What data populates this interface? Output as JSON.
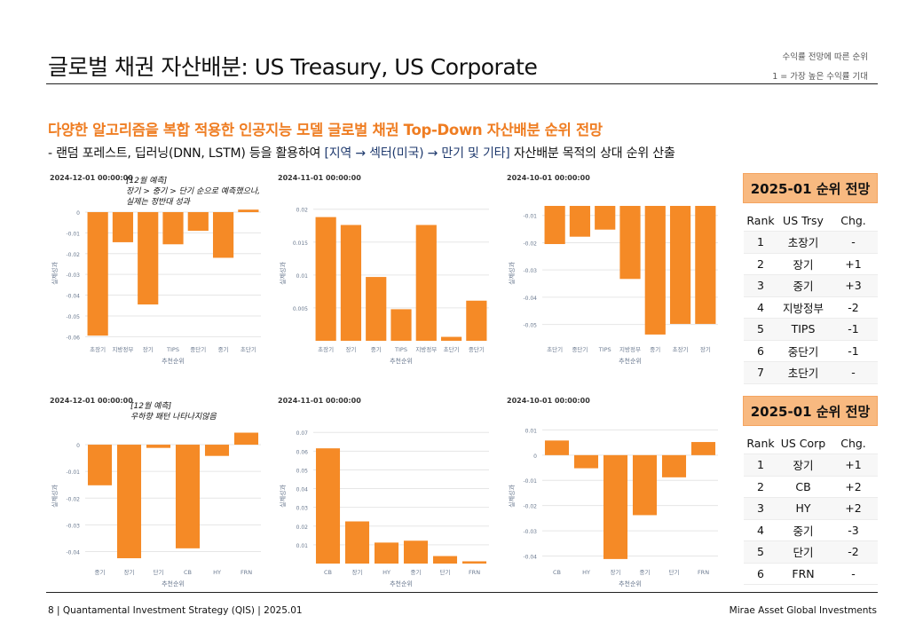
{
  "page": {
    "title": "글로벌 채권 자산배분: US Treasury, US Corporate",
    "note_line1": "수익률 전망에 따른 순위",
    "note_line2": "1 = 가장 높은 수익률 기대",
    "headline": "다양한 알고리즘을 복합 적용한 인공지능 모델 글로벌 채권 Top-Down 자산배분 순위 전망",
    "subline_prefix": "-  랜덤 포레스트, 딥러닝(DNN, LSTM) 등을 활용하여 ",
    "subline_highlight": "[지역 → 섹터(미국) → 만기 및 기타]",
    "subline_suffix": " 자산배분 목적의 상대 순위 산출"
  },
  "annotations": {
    "trsy": [
      "[12월 예측]",
      "장기 > 중기 > 단기 순으로 예측했으나,",
      "실제는 정반대 성과"
    ],
    "corp": [
      "[12월 예측]",
      "우하향 패턴 나타나지않음"
    ]
  },
  "chart_data": [
    {
      "type": "bar",
      "title": "2024-12-01 00:00:00",
      "categories": [
        "초장기",
        "지방정부",
        "장기",
        "TIPS",
        "중단기",
        "중기",
        "초단기"
      ],
      "values": [
        -0.0595,
        -0.0145,
        -0.0445,
        -0.0155,
        -0.009,
        -0.022,
        0.0012
      ],
      "ylim": [
        -0.062,
        0.003
      ],
      "yticks": [
        0,
        -0.01,
        -0.02,
        -0.03,
        -0.04,
        -0.05,
        -0.06
      ],
      "ytick_labels": [
        "0",
        "-0.01",
        "-0.02",
        "-0.03",
        "-0.04",
        "-0.05",
        "-0.06"
      ],
      "xlabel": "추천순위",
      "ylabel": "실제성과",
      "color": "#f58a26"
    },
    {
      "type": "bar",
      "title": "2024-11-01 00:00:00",
      "categories": [
        "초장기",
        "장기",
        "중기",
        "TIPS",
        "지방정부",
        "초단기",
        "중단기"
      ],
      "values": [
        0.0188,
        0.0176,
        0.0097,
        0.0048,
        0.0176,
        0.0006,
        0.0061
      ],
      "ylim": [
        0,
        0.0205
      ],
      "yticks": [
        0.005,
        0.01,
        0.015,
        0.02
      ],
      "ytick_labels": [
        "0.005",
        "0.01",
        "0.015",
        "0.02"
      ],
      "xlabel": "추천순위",
      "ylabel": "실제성과",
      "color": "#f58a26"
    },
    {
      "type": "bar",
      "title": "2024-10-01 00:00:00",
      "categories": [
        "초단기",
        "중단기",
        "TIPS",
        "지방정부",
        "중기",
        "초장기",
        "장기"
      ],
      "values": [
        -0.0205,
        -0.0178,
        -0.0152,
        -0.0333,
        -0.0537,
        -0.0498,
        -0.0498
      ],
      "ylim": [
        -0.056,
        -0.0065
      ],
      "yticks": [
        -0.01,
        -0.02,
        -0.03,
        -0.04,
        -0.05
      ],
      "ytick_labels": [
        "-0.01",
        "-0.02",
        "-0.03",
        "-0.04",
        "-0.05"
      ],
      "xlabel": "추천순위",
      "ylabel": "실제성과",
      "color": "#f58a26"
    },
    {
      "type": "bar",
      "title": "2024-12-01 00:00:00",
      "categories": [
        "중기",
        "장기",
        "단기",
        "CB",
        "HY",
        "FRN"
      ],
      "values": [
        -0.0152,
        -0.0425,
        -0.0012,
        -0.0388,
        -0.0042,
        0.0045
      ],
      "ylim": [
        -0.0445,
        0.006
      ],
      "yticks": [
        0,
        -0.01,
        -0.02,
        -0.03,
        -0.04
      ],
      "ytick_labels": [
        "0",
        "-0.01",
        "-0.02",
        "-0.03",
        "-0.04"
      ],
      "xlabel": "추천순위",
      "ylabel": "실제성과",
      "color": "#f58a26"
    },
    {
      "type": "bar",
      "title": "2024-11-01 00:00:00",
      "categories": [
        "CB",
        "장기",
        "HY",
        "중기",
        "단기",
        "FRN"
      ],
      "values": [
        0.0615,
        0.0225,
        0.0112,
        0.0122,
        0.004,
        0.0012
      ],
      "ylim": [
        0,
        0.072
      ],
      "yticks": [
        0.01,
        0.02,
        0.03,
        0.04,
        0.05,
        0.06,
        0.07
      ],
      "ytick_labels": [
        "0.01",
        "0.02",
        "0.03",
        "0.04",
        "0.05",
        "0.06",
        "0.07"
      ],
      "xlabel": "추천순위",
      "ylabel": "실제성과",
      "color": "#f58a26"
    },
    {
      "type": "bar",
      "title": "2024-10-01 00:00:00",
      "categories": [
        "CB",
        "HY",
        "장기",
        "중기",
        "단기",
        "FRN"
      ],
      "values": [
        0.0058,
        -0.0052,
        -0.0412,
        -0.0238,
        -0.0088,
        0.0052
      ],
      "ylim": [
        -0.043,
        0.0105
      ],
      "yticks": [
        0.01,
        0,
        -0.01,
        -0.02,
        -0.03,
        -0.04
      ],
      "ytick_labels": [
        "0.01",
        "0",
        "-0.01",
        "-0.02",
        "-0.03",
        "-0.04"
      ],
      "xlabel": "추천순위",
      "ylabel": "실제성과",
      "color": "#f58a26"
    }
  ],
  "trsy_table": {
    "header": "2025-01 순위 전망",
    "columns": [
      "Rank",
      "US Trsy",
      "Chg."
    ],
    "rows": [
      [
        "1",
        "초장기",
        "-"
      ],
      [
        "2",
        "장기",
        "+1"
      ],
      [
        "3",
        "중기",
        "+3"
      ],
      [
        "4",
        "지방정부",
        "-2"
      ],
      [
        "5",
        "TIPS",
        "-1"
      ],
      [
        "6",
        "중단기",
        "-1"
      ],
      [
        "7",
        "초단기",
        "-"
      ]
    ]
  },
  "corp_table": {
    "header": "2025-01 순위 전망",
    "columns": [
      "Rank",
      "US Corp",
      "Chg."
    ],
    "rows": [
      [
        "1",
        "장기",
        "+1"
      ],
      [
        "2",
        "CB",
        "+2"
      ],
      [
        "3",
        "HY",
        "+2"
      ],
      [
        "4",
        "중기",
        "-3"
      ],
      [
        "5",
        "단기",
        "-2"
      ],
      [
        "6",
        "FRN",
        "-"
      ]
    ]
  },
  "footer": {
    "left": "8 | Quantamental Investment Strategy (QIS) | 2025.01",
    "right": "Mirae Asset Global Investments"
  }
}
